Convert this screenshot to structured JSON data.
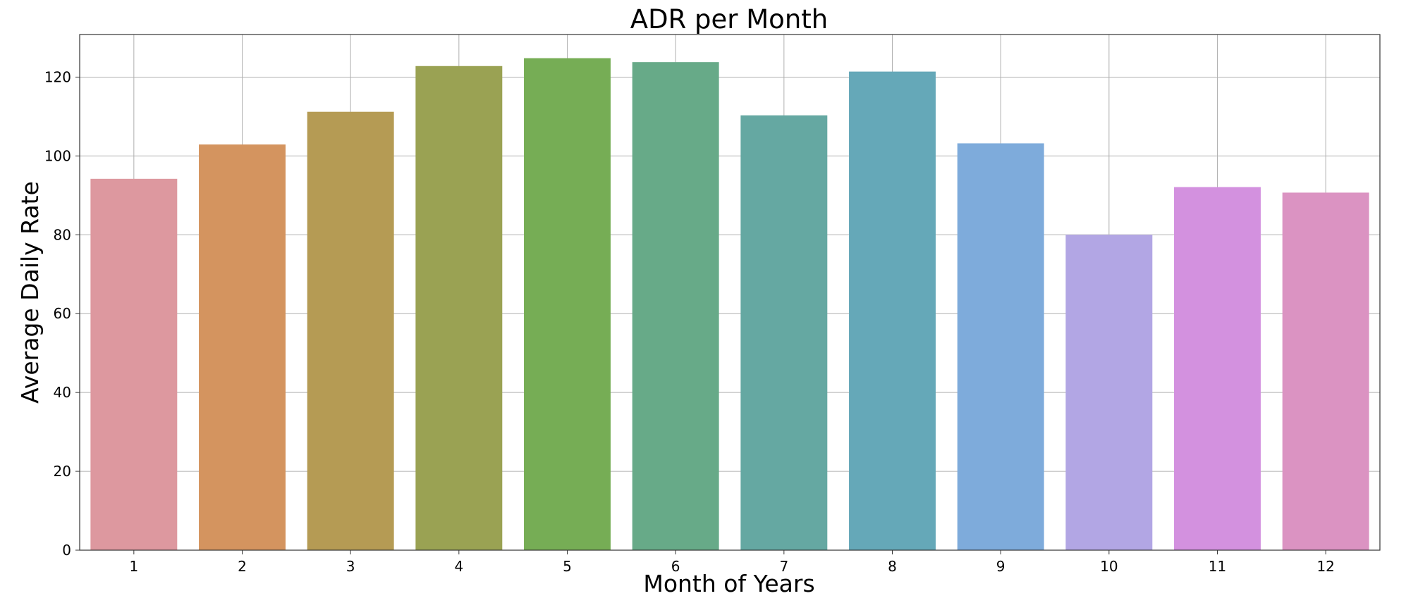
{
  "chart_data": {
    "type": "bar",
    "title": "ADR per Month",
    "xlabel": "Month of Years",
    "ylabel": "Average Daily Rate",
    "categories": [
      "1",
      "2",
      "3",
      "4",
      "5",
      "6",
      "7",
      "8",
      "9",
      "10",
      "11",
      "12"
    ],
    "values": [
      94.2,
      102.9,
      111.2,
      122.8,
      124.8,
      123.8,
      110.3,
      121.4,
      103.2,
      80.0,
      92.1,
      90.7
    ],
    "colors": [
      "#dd989f",
      "#d4945f",
      "#b59b54",
      "#9aa253",
      "#76ad55",
      "#67aa88",
      "#65a8a2",
      "#65a8b8",
      "#7eabdb",
      "#b2a6e4",
      "#d391df",
      "#db93c2"
    ],
    "yticks": [
      0,
      20,
      40,
      60,
      80,
      100,
      120
    ],
    "ylim": [
      0,
      130.8
    ],
    "grid": true
  }
}
